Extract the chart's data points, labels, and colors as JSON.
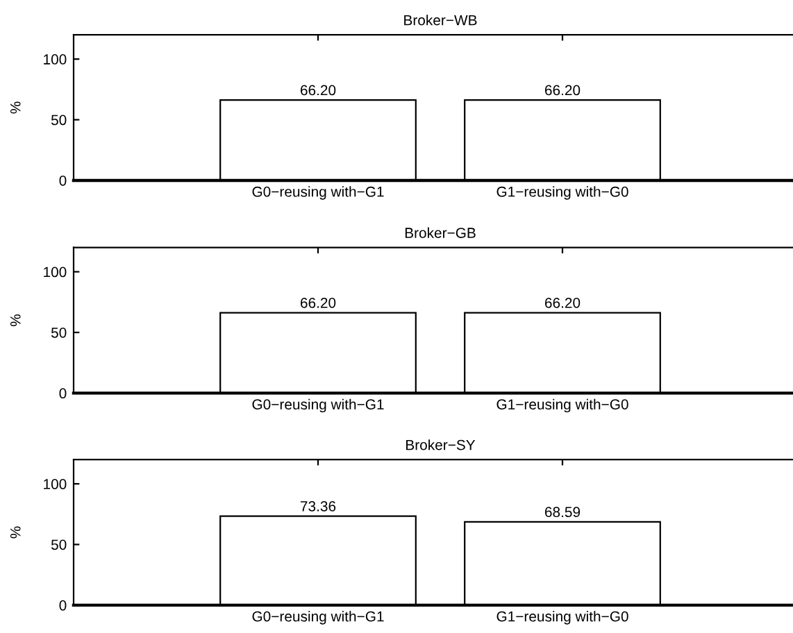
{
  "chart_data": [
    {
      "type": "bar",
      "title": "Broker−WB",
      "ylabel": "%",
      "categories": [
        "G0−reusing with−G1",
        "G1−reusing with−G0"
      ],
      "values": [
        66.2,
        66.2
      ],
      "value_labels": [
        "66.20",
        "66.20"
      ],
      "color": "#ffffff",
      "ylim": [
        0,
        120
      ],
      "yticks": [
        0,
        50,
        100
      ],
      "grid": false,
      "legend": false
    },
    {
      "type": "bar",
      "title": "Broker−GB",
      "ylabel": "%",
      "categories": [
        "G0−reusing with−G1",
        "G1−reusing with−G0"
      ],
      "values": [
        66.2,
        66.2
      ],
      "value_labels": [
        "66.20",
        "66.20"
      ],
      "color": "#ffffff",
      "ylim": [
        0,
        120
      ],
      "yticks": [
        0,
        50,
        100
      ],
      "grid": false,
      "legend": false
    },
    {
      "type": "bar",
      "title": "Broker−SY",
      "ylabel": "%",
      "categories": [
        "G0−reusing with−G1",
        "G1−reusing with−G0"
      ],
      "values": [
        73.36,
        68.59
      ],
      "value_labels": [
        "73.36",
        "68.59"
      ],
      "color": "#ffffff",
      "ylim": [
        0,
        120
      ],
      "yticks": [
        0,
        50,
        100
      ],
      "grid": false,
      "legend": false
    }
  ]
}
